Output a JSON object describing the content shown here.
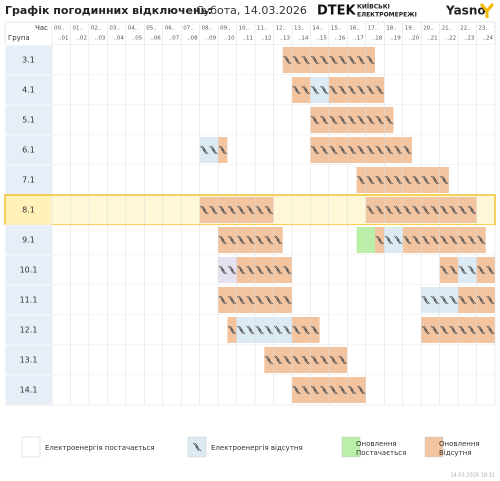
{
  "header": {
    "title": "Графік погодинних відключень:",
    "date": "Субота, 14.03.2026",
    "brand": "DTEK",
    "brand_line1": "КИЇВСЬКІ",
    "brand_line2": "ЕЛЕКТРОМЕРЕЖІ",
    "brand2": "Yasno"
  },
  "table": {
    "time_label": "Час",
    "group_label": "Група",
    "hours": [
      [
        "00..",
        "..01"
      ],
      [
        "01..",
        "..02"
      ],
      [
        "02..",
        "..03"
      ],
      [
        "03..",
        "..04"
      ],
      [
        "04..",
        "..05"
      ],
      [
        "05..",
        "..06"
      ],
      [
        "06..",
        "..07"
      ],
      [
        "07..",
        "..08"
      ],
      [
        "08..",
        "..09"
      ],
      [
        "09..",
        "..10"
      ],
      [
        "10..",
        "..11"
      ],
      [
        "11..",
        "..12"
      ],
      [
        "12..",
        "..13"
      ],
      [
        "13..",
        "..14"
      ],
      [
        "14..",
        "..15"
      ],
      [
        "15..",
        "..16"
      ],
      [
        "16..",
        "..17"
      ],
      [
        "17..",
        "..18"
      ],
      [
        "18..",
        "..19"
      ],
      [
        "19..",
        "..20"
      ],
      [
        "20..",
        "..21"
      ],
      [
        "21..",
        "..22"
      ],
      [
        "22..",
        "..23"
      ],
      [
        "23..",
        "..24"
      ]
    ],
    "rows": [
      {
        "group": "3.1",
        "segments": [
          {
            "start": 12.5,
            "end": 17.5,
            "color": "#f3c4a0",
            "icon": true
          }
        ]
      },
      {
        "group": "4.1",
        "segments": [
          {
            "start": 13,
            "end": 14,
            "color": "#f3c4a0",
            "icon": true
          },
          {
            "start": 14,
            "end": 15,
            "color": "#dcebf3",
            "icon": true
          },
          {
            "start": 15,
            "end": 18,
            "color": "#f3c4a0",
            "icon": true
          }
        ]
      },
      {
        "group": "5.1",
        "segments": [
          {
            "start": 14,
            "end": 18.5,
            "color": "#f3c4a0",
            "icon": true
          }
        ]
      },
      {
        "group": "6.1",
        "segments": [
          {
            "start": 8,
            "end": 9,
            "color": "#dcebf3",
            "icon": true
          },
          {
            "start": 9,
            "end": 9.5,
            "color": "#f3c4a0",
            "icon": true
          },
          {
            "start": 14,
            "end": 19.5,
            "color": "#f3c4a0",
            "icon": true
          }
        ]
      },
      {
        "group": "7.1",
        "segments": [
          {
            "start": 16.5,
            "end": 21.5,
            "color": "#f3c4a0",
            "icon": true
          }
        ]
      },
      {
        "group": "8.1",
        "highlighted": true,
        "segments": [
          {
            "start": 8,
            "end": 12,
            "color": "#f3c4a0",
            "icon": true
          },
          {
            "start": 17,
            "end": 23,
            "color": "#f3c4a0",
            "icon": true
          }
        ]
      },
      {
        "group": "9.1",
        "segments": [
          {
            "start": 9,
            "end": 12.5,
            "color": "#f3c4a0",
            "icon": true
          },
          {
            "start": 16.5,
            "end": 17.5,
            "color": "#b9efa6",
            "icon": false
          },
          {
            "start": 17.5,
            "end": 18,
            "color": "#f3c4a0",
            "icon": true
          },
          {
            "start": 18,
            "end": 19,
            "color": "#dcebf3",
            "icon": true
          },
          {
            "start": 19,
            "end": 23.5,
            "color": "#f3c4a0",
            "icon": true
          }
        ]
      },
      {
        "group": "10.1",
        "segments": [
          {
            "start": 9,
            "end": 10,
            "color": "#e6e1f0",
            "icon": true
          },
          {
            "start": 10,
            "end": 13,
            "color": "#f3c4a0",
            "icon": true
          },
          {
            "start": 21,
            "end": 22,
            "color": "#f3c4a0",
            "icon": true
          },
          {
            "start": 22,
            "end": 23,
            "color": "#dcebf3",
            "icon": true
          },
          {
            "start": 23,
            "end": 24,
            "color": "#f3c4a0",
            "icon": true
          }
        ]
      },
      {
        "group": "11.1",
        "segments": [
          {
            "start": 9,
            "end": 13,
            "color": "#f3c4a0",
            "icon": true
          },
          {
            "start": 20,
            "end": 22,
            "color": "#dcebf3",
            "icon": true
          },
          {
            "start": 22,
            "end": 24,
            "color": "#f3c4a0",
            "icon": true
          }
        ]
      },
      {
        "group": "12.1",
        "segments": [
          {
            "start": 9.5,
            "end": 10,
            "color": "#f3c4a0",
            "icon": true
          },
          {
            "start": 10,
            "end": 13,
            "color": "#dcebf3",
            "icon": true
          },
          {
            "start": 13,
            "end": 14.5,
            "color": "#f3c4a0",
            "icon": true
          },
          {
            "start": 20,
            "end": 24,
            "color": "#f3c4a0",
            "icon": true
          }
        ]
      },
      {
        "group": "13.1",
        "segments": [
          {
            "start": 11.5,
            "end": 16,
            "color": "#f3c4a0",
            "icon": true
          }
        ]
      },
      {
        "group": "14.1",
        "segments": [
          {
            "start": 13,
            "end": 17,
            "color": "#f3c4a0",
            "icon": true
          }
        ]
      }
    ]
  },
  "legend": [
    {
      "label": "Електроенергія постачається",
      "color": "#ffffff",
      "icon": false
    },
    {
      "label": "Електроенергія відсутня",
      "color": "#dcebf3",
      "icon": true
    },
    {
      "label": "Оновлення Постачається",
      "color": "#b9efa6",
      "icon": false
    },
    {
      "label": "Оновлення Відсутня",
      "color": "#f3c4a0",
      "icon": false
    }
  ],
  "footer": "14.03.2026 18:31"
}
